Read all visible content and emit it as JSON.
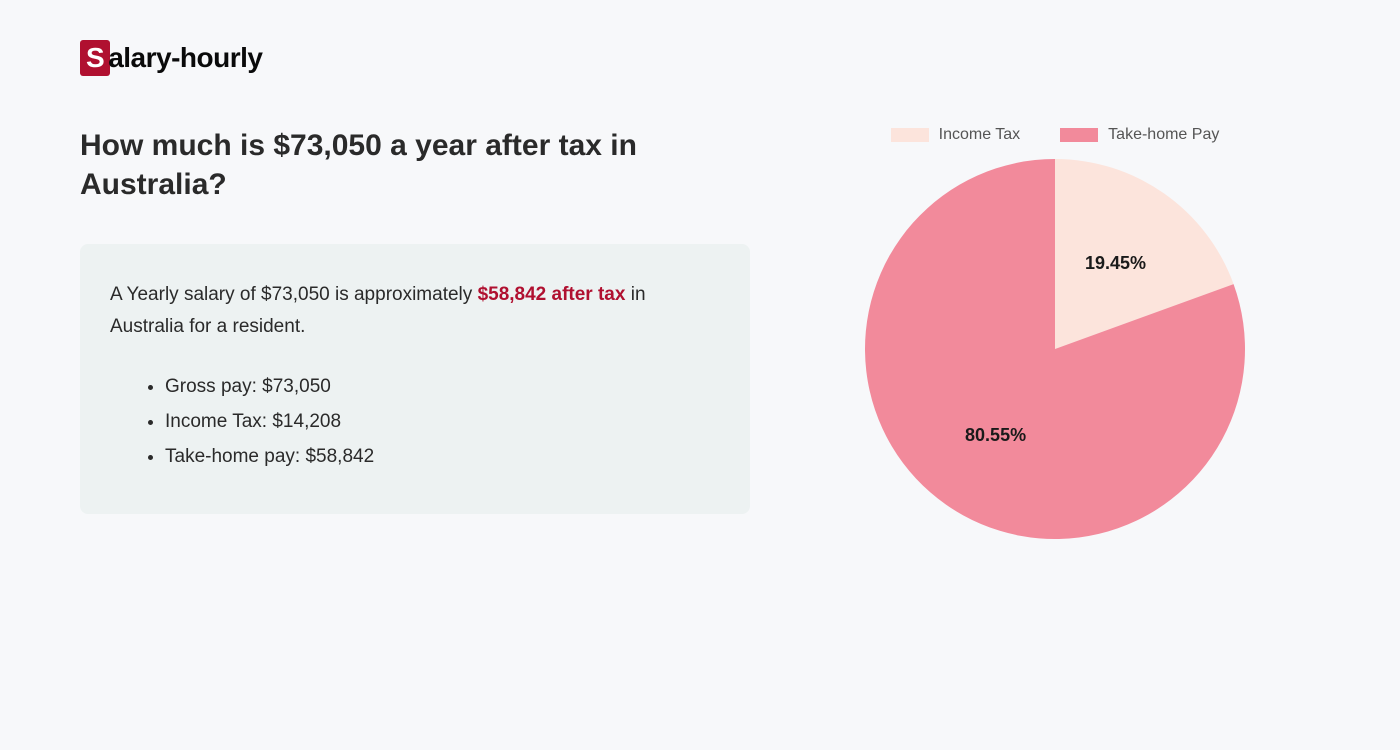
{
  "logo": {
    "prefix": "S",
    "rest": "alary-hourly"
  },
  "heading": "How much is $73,050 a year after tax in Australia?",
  "summary": {
    "text_before": "A Yearly salary of $73,050 is approximately ",
    "highlight": "$58,842 after tax",
    "text_after": " in Australia for a resident."
  },
  "bullets": [
    "Gross pay: $73,050",
    "Income Tax: $14,208",
    "Take-home pay: $58,842"
  ],
  "chart": {
    "type": "pie",
    "slices": [
      {
        "label": "Income Tax",
        "value": 19.45,
        "display": "19.45%",
        "color": "#fce4dc"
      },
      {
        "label": "Take-home Pay",
        "value": 80.55,
        "display": "80.55%",
        "color": "#f28a9b"
      }
    ],
    "label_color": "#1a1a1a",
    "label_fontsize": 18,
    "legend_fontsize": 16,
    "legend_text_color": "#555555",
    "background_color": "#f7f8fa",
    "radius": 190,
    "start_angle": 0
  },
  "colors": {
    "page_bg": "#f7f8fa",
    "summary_box_bg": "#edf2f2",
    "text": "#2a2a2a",
    "highlight": "#b01030",
    "logo_s_bg": "#b01030"
  }
}
